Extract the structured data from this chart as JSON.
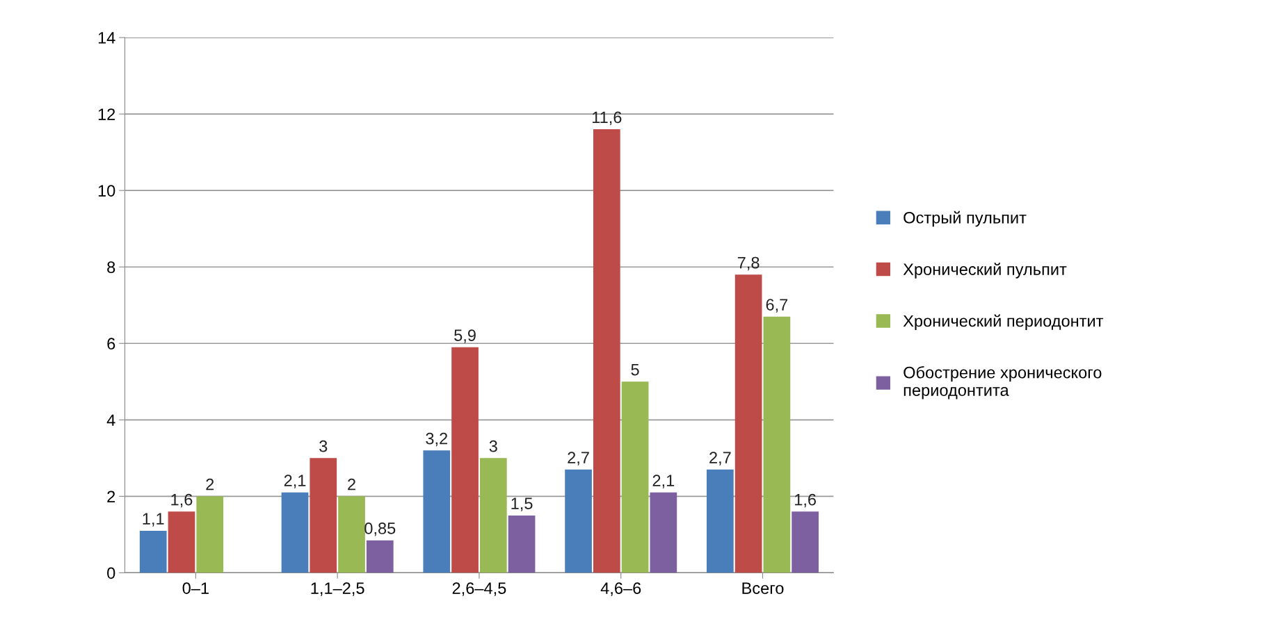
{
  "chart_data": {
    "type": "bar",
    "categories": [
      "0–1",
      "1,1–2,5",
      "2,6–4,5",
      "4,6–6",
      "Всего"
    ],
    "series": [
      {
        "name": "Острый пульпит",
        "color": "#4a7ebb",
        "values": [
          1.1,
          2.1,
          3.2,
          2.7,
          2.7
        ],
        "value_labels": [
          "1,1",
          "2,1",
          "3,2",
          "2,7",
          "2,7"
        ]
      },
      {
        "name": "Хронический пульпит",
        "color": "#be4b48",
        "values": [
          1.6,
          3,
          5.9,
          11.6,
          7.8
        ],
        "value_labels": [
          "1,6",
          "3",
          "5,9",
          "11,6",
          "7,8"
        ]
      },
      {
        "name": "Хронический периодонтит",
        "color": "#98b954",
        "values": [
          2,
          2,
          3,
          5,
          6.7
        ],
        "value_labels": [
          "2",
          "2",
          "3",
          "5",
          "6,7"
        ]
      },
      {
        "name": "Обострение хронического\nпериодонтита",
        "color": "#7d60a0",
        "values": [
          null,
          0.85,
          1.5,
          2.1,
          1.6
        ],
        "value_labels": [
          null,
          "0,85",
          "1,5",
          "2,1",
          "1,6"
        ]
      }
    ],
    "ylim": [
      0,
      14
    ],
    "yticks": [
      0,
      2,
      4,
      6,
      8,
      10,
      12,
      14
    ],
    "grid": "y",
    "legend": "right"
  }
}
